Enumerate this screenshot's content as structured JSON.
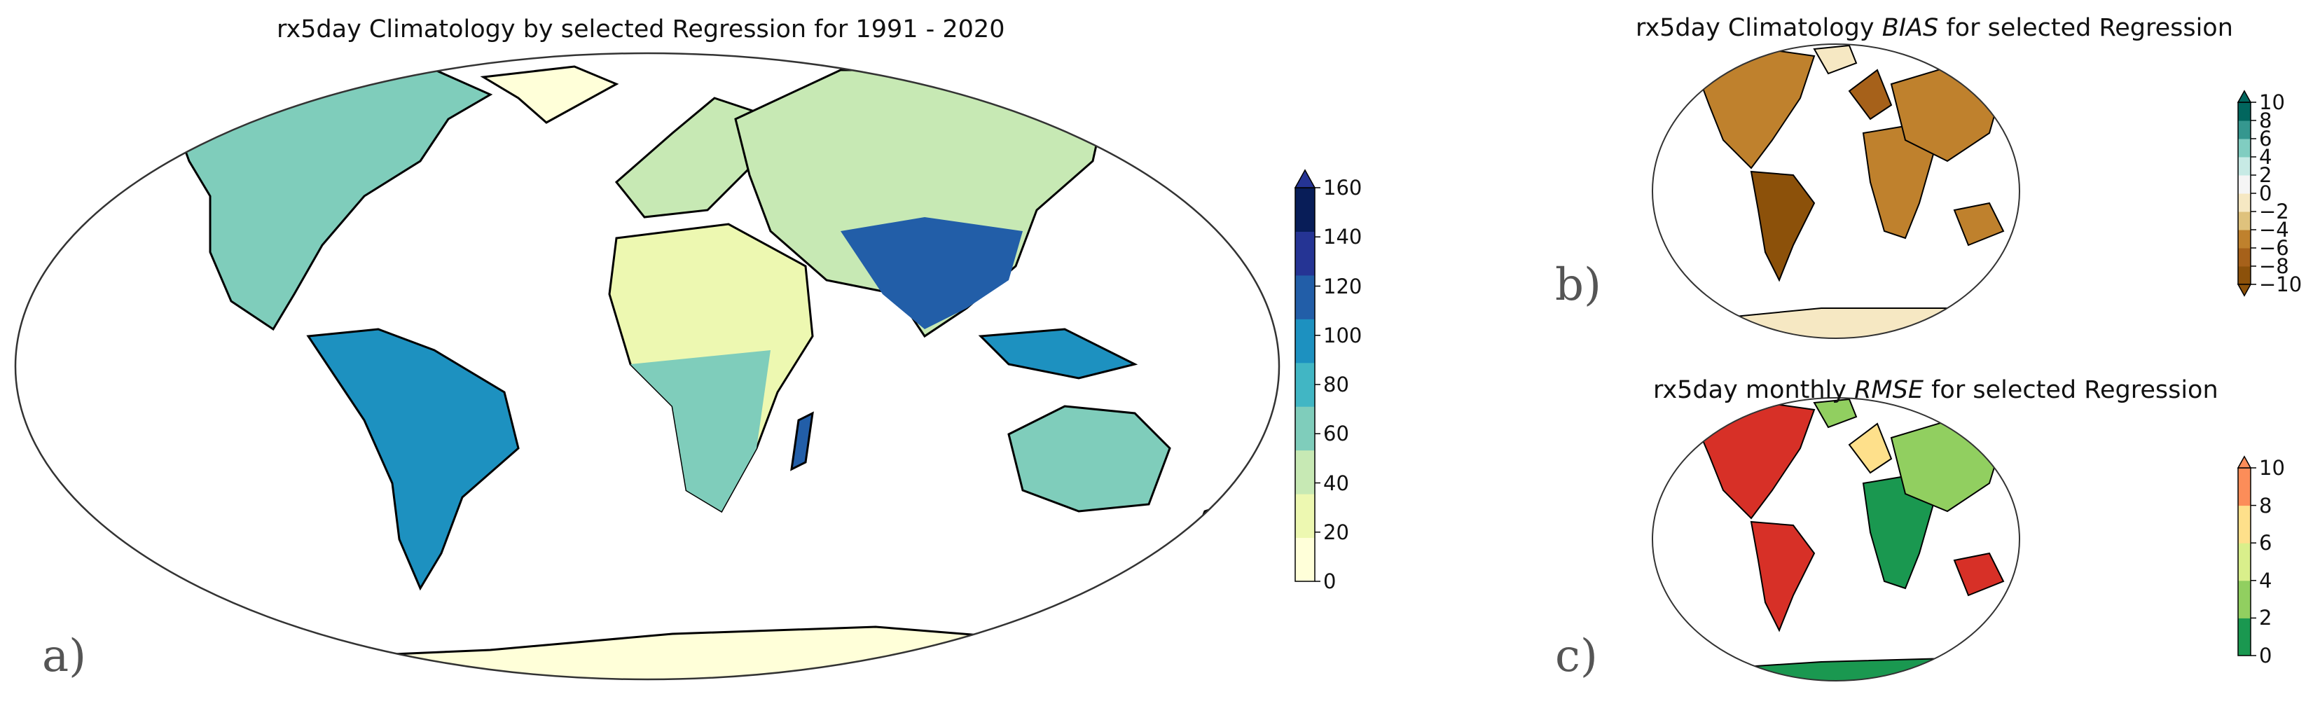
{
  "panels": {
    "a": {
      "label": "a)",
      "title": "rx5day Climatology by selected Regression for 1991 - 2020",
      "colorbar": {
        "ticks": [
          "160",
          "140",
          "120",
          "100",
          "80",
          "60",
          "40",
          "20",
          "0"
        ],
        "colors": [
          "#ffffd9",
          "#edf8b1",
          "#c7e9b4",
          "#7fcdbb",
          "#41b6c4",
          "#1d91c0",
          "#225ea8",
          "#253494",
          "#081d58"
        ]
      }
    },
    "b": {
      "label": "b)",
      "title_pre": "rx5day Climatology ",
      "title_italic": "BIAS",
      "title_post": " for selected Regression",
      "colorbar": {
        "ticks": [
          "10",
          "8",
          "6",
          "4",
          "2",
          "0",
          "−2",
          "−4",
          "−6",
          "−8",
          "−10"
        ],
        "colors": [
          "#8c510a",
          "#a6611a",
          "#bf812d",
          "#dfc27d",
          "#f6e8c3",
          "#f5f5f5",
          "#c7eae5",
          "#80cdc1",
          "#35978f",
          "#01665e"
        ]
      }
    },
    "c": {
      "label": "c)",
      "title_pre": "rx5day monthly ",
      "title_italic": "RMSE",
      "title_post": " for selected Regression",
      "colorbar": {
        "ticks": [
          "10",
          "8",
          "6",
          "4",
          "2",
          "0"
        ],
        "colors": [
          "#1a9850",
          "#91cf60",
          "#d9ef8b",
          "#fee08b",
          "#fc8d59"
        ]
      }
    }
  }
}
